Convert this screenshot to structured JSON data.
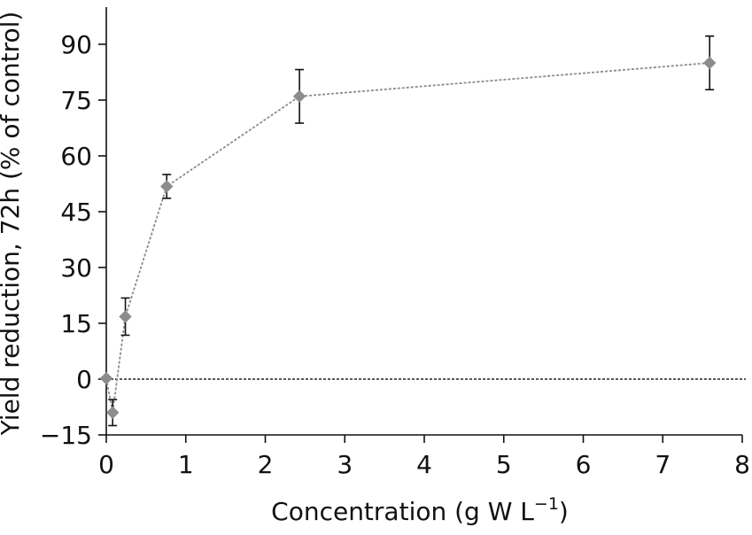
{
  "chart_data": {
    "type": "scatter",
    "title": "",
    "xlabel": "Concentration (g W L",
    "xlabel_sup": "−1",
    "xlabel_close": ")",
    "ylabel": "Yield reduction, 72h (% of control)",
    "xlim": [
      0,
      8
    ],
    "ylim": [
      -15,
      100
    ],
    "x_ticks": [
      0,
      1,
      2,
      3,
      4,
      5,
      6,
      7,
      8
    ],
    "x_tick_labels": [
      "0",
      "1",
      "2",
      "3",
      "4",
      "5",
      "6",
      "7",
      "8"
    ],
    "y_ticks": [
      -15,
      0,
      15,
      30,
      45,
      60,
      75,
      90
    ],
    "y_tick_labels": [
      "−15",
      "0",
      "15",
      "30",
      "45",
      "60",
      "75",
      "90"
    ],
    "grid": false,
    "reference_line_y": 0,
    "series": [
      {
        "x": [
          0,
          0.08,
          0.24,
          0.76,
          2.43,
          7.59
        ],
        "y": [
          0.2,
          -9,
          16.8,
          51.8,
          76,
          85
        ],
        "error": [
          0,
          3.5,
          5,
          3.2,
          7.2,
          7.2
        ],
        "marker": "diamond",
        "line_style": "dotted",
        "color": "#8c8c8c"
      }
    ]
  }
}
